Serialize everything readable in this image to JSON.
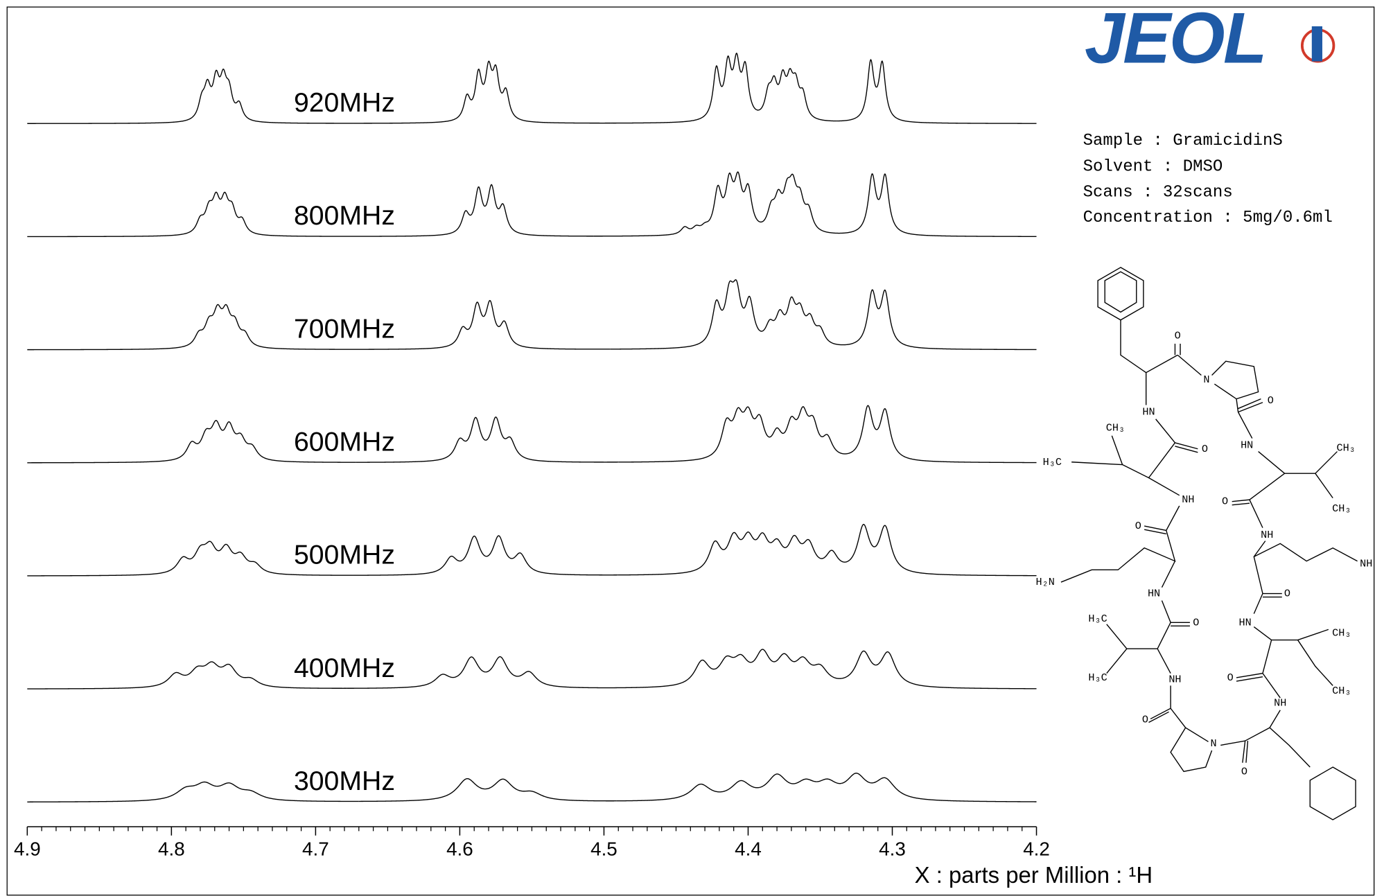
{
  "logo": {
    "text": "JEOL"
  },
  "sample_info": [
    "Sample : GramicidinS",
    "Solvent : DMSO",
    "Scans : 32scans",
    "Concentration : 5mg/0.6ml"
  ],
  "structure": {
    "labels": [
      "O",
      "N",
      "O",
      "HN",
      "CH₃",
      "O",
      "H₃C",
      "HN",
      "CH₃",
      "NH",
      "O",
      "CH₃",
      "O",
      "NH",
      "H₂N",
      "NH",
      "HN",
      "O",
      "H₃C",
      "O",
      "HN",
      "CH₃",
      "H₃C",
      "NH",
      "O",
      "CH₃",
      "NH",
      "O",
      "N",
      "O"
    ]
  },
  "chart_data": {
    "type": "spectrum-stack",
    "x_label": "X : parts per Million : ¹H",
    "xlim": [
      4.9,
      4.2
    ],
    "xticks": [
      4.9,
      4.8,
      4.7,
      4.6,
      4.5,
      4.4,
      4.3,
      4.2
    ],
    "xminorticks": [
      4.89,
      4.88,
      4.87,
      4.86,
      4.85,
      4.84,
      4.83,
      4.82,
      4.81,
      4.79,
      4.78,
      4.77,
      4.76,
      4.75,
      4.74,
      4.73,
      4.72,
      4.71,
      4.69,
      4.68,
      4.67,
      4.66,
      4.65,
      4.64,
      4.63,
      4.62,
      4.61,
      4.59,
      4.58,
      4.57,
      4.56,
      4.55,
      4.54,
      4.53,
      4.52,
      4.51,
      4.49,
      4.48,
      4.47,
      4.46,
      4.45,
      4.44,
      4.43,
      4.42,
      4.41,
      4.39,
      4.38,
      4.37,
      4.36,
      4.35,
      4.34,
      4.33,
      4.32,
      4.31,
      4.29,
      4.28,
      4.27,
      4.26,
      4.25,
      4.24,
      4.23,
      4.22,
      4.21
    ],
    "color": "#000000",
    "series": [
      {
        "name": "920MHz",
        "x": [
          4.779,
          4.775,
          4.769,
          4.764,
          4.76,
          4.753,
          4.595,
          4.587,
          4.58,
          4.575,
          4.568,
          4.422,
          4.414,
          4.408,
          4.402,
          4.386,
          4.382,
          4.376,
          4.371,
          4.367,
          4.362,
          4.315,
          4.307
        ],
        "values": [
          25,
          42,
          52,
          50,
          36,
          22,
          32,
          62,
          64,
          60,
          38,
          70,
          72,
          72,
          68,
          32,
          42,
          50,
          46,
          42,
          32,
          82,
          80
        ]
      },
      {
        "name": "800MHz",
        "x": [
          4.78,
          4.774,
          4.769,
          4.763,
          4.758,
          4.751,
          4.596,
          4.587,
          4.578,
          4.57,
          4.444,
          4.436,
          4.43,
          4.421,
          4.413,
          4.407,
          4.4,
          4.384,
          4.379,
          4.373,
          4.369,
          4.364,
          4.358,
          4.314,
          4.305
        ],
        "values": [
          18,
          30,
          42,
          42,
          30,
          18,
          28,
          60,
          62,
          36,
          10,
          8,
          7,
          58,
          64,
          64,
          56,
          28,
          40,
          44,
          52,
          40,
          28,
          80,
          80
        ]
      },
      {
        "name": "700MHz",
        "x": [
          4.781,
          4.774,
          4.768,
          4.762,
          4.756,
          4.749,
          4.598,
          4.588,
          4.579,
          4.569,
          4.422,
          4.413,
          4.408,
          4.399,
          4.385,
          4.378,
          4.37,
          4.364,
          4.357,
          4.35,
          4.314,
          4.305
        ],
        "values": [
          16,
          28,
          42,
          42,
          28,
          16,
          24,
          56,
          58,
          32,
          56,
          62,
          64,
          58,
          24,
          36,
          52,
          40,
          32,
          20,
          74,
          74
        ]
      },
      {
        "name": "600MHz",
        "x": [
          4.786,
          4.776,
          4.769,
          4.76,
          4.752,
          4.744,
          4.6,
          4.589,
          4.575,
          4.565,
          4.415,
          4.407,
          4.4,
          4.392,
          4.38,
          4.37,
          4.362,
          4.355,
          4.345,
          4.317,
          4.305
        ],
        "values": [
          22,
          30,
          42,
          42,
          26,
          16,
          26,
          56,
          56,
          26,
          46,
          50,
          50,
          46,
          30,
          42,
          54,
          42,
          26,
          72,
          68
        ]
      },
      {
        "name": "500MHz",
        "x": [
          4.792,
          4.78,
          4.773,
          4.762,
          4.752,
          4.742,
          4.606,
          4.59,
          4.573,
          4.558,
          4.423,
          4.41,
          4.4,
          4.39,
          4.38,
          4.368,
          4.358,
          4.342,
          4.32,
          4.305
        ],
        "values": [
          20,
          26,
          32,
          32,
          22,
          12,
          22,
          50,
          50,
          26,
          40,
          44,
          40,
          40,
          32,
          40,
          36,
          26,
          64,
          64
        ]
      },
      {
        "name": "400MHz",
        "x": [
          4.797,
          4.782,
          4.772,
          4.76,
          4.745,
          4.612,
          4.592,
          4.572,
          4.552,
          4.432,
          4.415,
          4.405,
          4.39,
          4.375,
          4.362,
          4.35,
          4.32,
          4.303
        ],
        "values": [
          18,
          20,
          26,
          26,
          10,
          16,
          40,
          40,
          20,
          34,
          30,
          30,
          42,
          34,
          30,
          22,
          46,
          46
        ]
      },
      {
        "name": "300MHz",
        "x": [
          4.79,
          4.777,
          4.76,
          4.745,
          4.595,
          4.57,
          4.55,
          4.433,
          4.405,
          4.38,
          4.36,
          4.345,
          4.325,
          4.305
        ],
        "values": [
          14,
          20,
          20,
          10,
          30,
          28,
          10,
          22,
          24,
          32,
          20,
          20,
          32,
          28
        ]
      }
    ]
  }
}
